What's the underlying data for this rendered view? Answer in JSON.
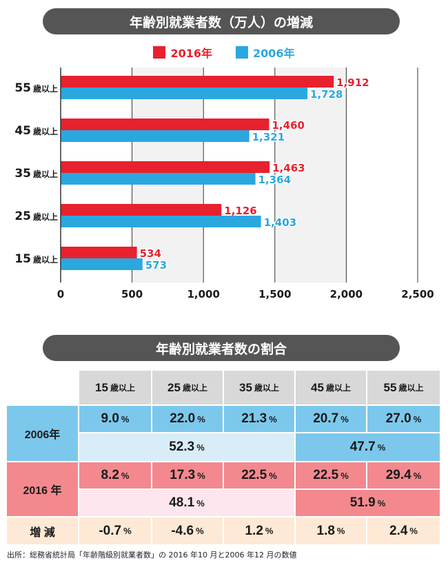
{
  "title_chart": "年齢別就業者数（万人）の増減",
  "title_table": "年齢別就業者数の割合",
  "legend": [
    {
      "label": "2016年",
      "color": "#e8212e"
    },
    {
      "label": "2006年",
      "color": "#2ba7e0"
    }
  ],
  "chart_data": {
    "type": "bar",
    "orientation": "horizontal",
    "categories": [
      "55歳以上",
      "45歳以上",
      "35歳以上",
      "25歳以上",
      "15歳以上"
    ],
    "category_labels": [
      {
        "num": "55",
        "suffix": "歳以上"
      },
      {
        "num": "45",
        "suffix": "歳以上"
      },
      {
        "num": "35",
        "suffix": "歳以上"
      },
      {
        "num": "25",
        "suffix": "歳以上"
      },
      {
        "num": "15",
        "suffix": "歳以上"
      }
    ],
    "series": [
      {
        "name": "2016年",
        "color": "#e8212e",
        "values": [
          1912,
          1460,
          1463,
          1126,
          534
        ],
        "labels": [
          "1,912",
          "1,460",
          "1,463",
          "1,126",
          "534"
        ]
      },
      {
        "name": "2006年",
        "color": "#2ba7e0",
        "values": [
          1728,
          1321,
          1364,
          1403,
          573
        ],
        "labels": [
          "1,728",
          "1,321",
          "1,364",
          "1,403",
          "573"
        ]
      }
    ],
    "xlim": [
      0,
      2500
    ],
    "xticks": [
      0,
      500,
      1000,
      1500,
      2000,
      2500
    ],
    "xtick_labels": [
      "0",
      "500",
      "1,000",
      "1,500",
      "2,000",
      "2,500"
    ],
    "grid": true,
    "legend_position": "top"
  },
  "table": {
    "headers": [
      {
        "num": "15",
        "suffix": "歳以上"
      },
      {
        "num": "25",
        "suffix": "歳以上"
      },
      {
        "num": "35",
        "suffix": "歳以上"
      },
      {
        "num": "45",
        "suffix": "歳以上"
      },
      {
        "num": "55",
        "suffix": "歳以上"
      }
    ],
    "pct_unit": "%",
    "row2006": {
      "label": "2006年",
      "values": [
        "9.0",
        "22.0",
        "21.3",
        "20.7",
        "27.0"
      ],
      "sum_under45": "52.3",
      "sum_over45": "47.7"
    },
    "row2016": {
      "label": "2016 年",
      "values": [
        "8.2",
        "17.3",
        "22.5",
        "22.5",
        "29.4"
      ],
      "sum_under45": "48.1",
      "sum_over45": "51.9"
    },
    "change": {
      "label": "増 減",
      "values": [
        "-0.7",
        "-4.6",
        "1.2",
        "1.8",
        "2.4"
      ]
    }
  },
  "source": "出所：総務省統計局「年齢階級別就業者数」の 2016 年10 月と2006 年12 月の数値"
}
